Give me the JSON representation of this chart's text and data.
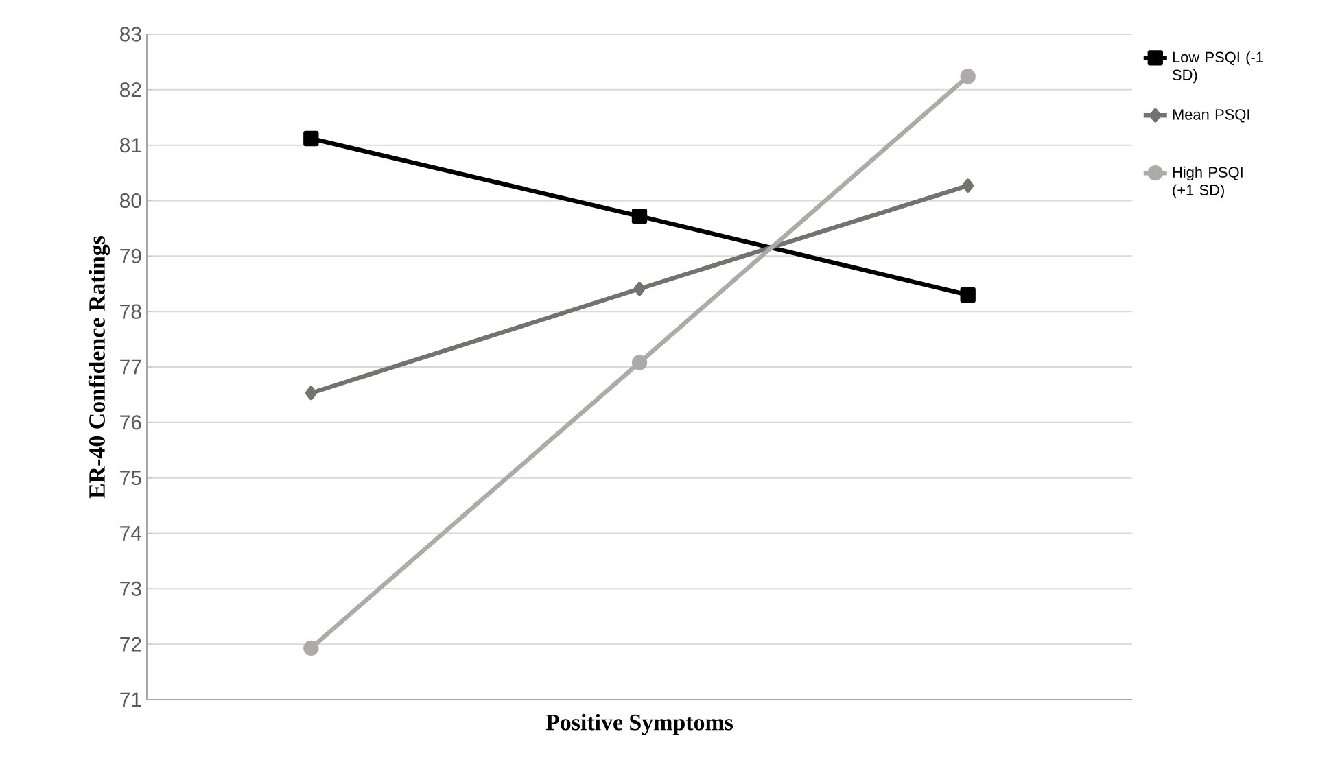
{
  "chart_data": {
    "type": "line",
    "xlabel": "Positive Symptoms",
    "ylabel": "ER-40 Confidence Ratings",
    "categories": [
      null,
      null,
      null
    ],
    "series": [
      {
        "name": "Low PSQI (-1 SD)",
        "color": "#000000",
        "marker": "square",
        "values": [
          81.12,
          79.72,
          78.3
        ]
      },
      {
        "name": "Mean PSQI",
        "color": "#767171",
        "marker": "diamond",
        "values": [
          76.53,
          78.41,
          80.27
        ]
      },
      {
        "name": "High PSQI (+1 SD)",
        "color": "#aeaaaa",
        "marker": "circle",
        "values": [
          71.93,
          77.08,
          82.24
        ]
      }
    ],
    "ylim": [
      71,
      83
    ],
    "yticks": [
      71,
      72,
      73,
      74,
      75,
      76,
      77,
      78,
      79,
      80,
      81,
      82,
      83
    ],
    "grid": "y",
    "legend": "right",
    "tick_labels": "y",
    "line_style": "solid"
  }
}
